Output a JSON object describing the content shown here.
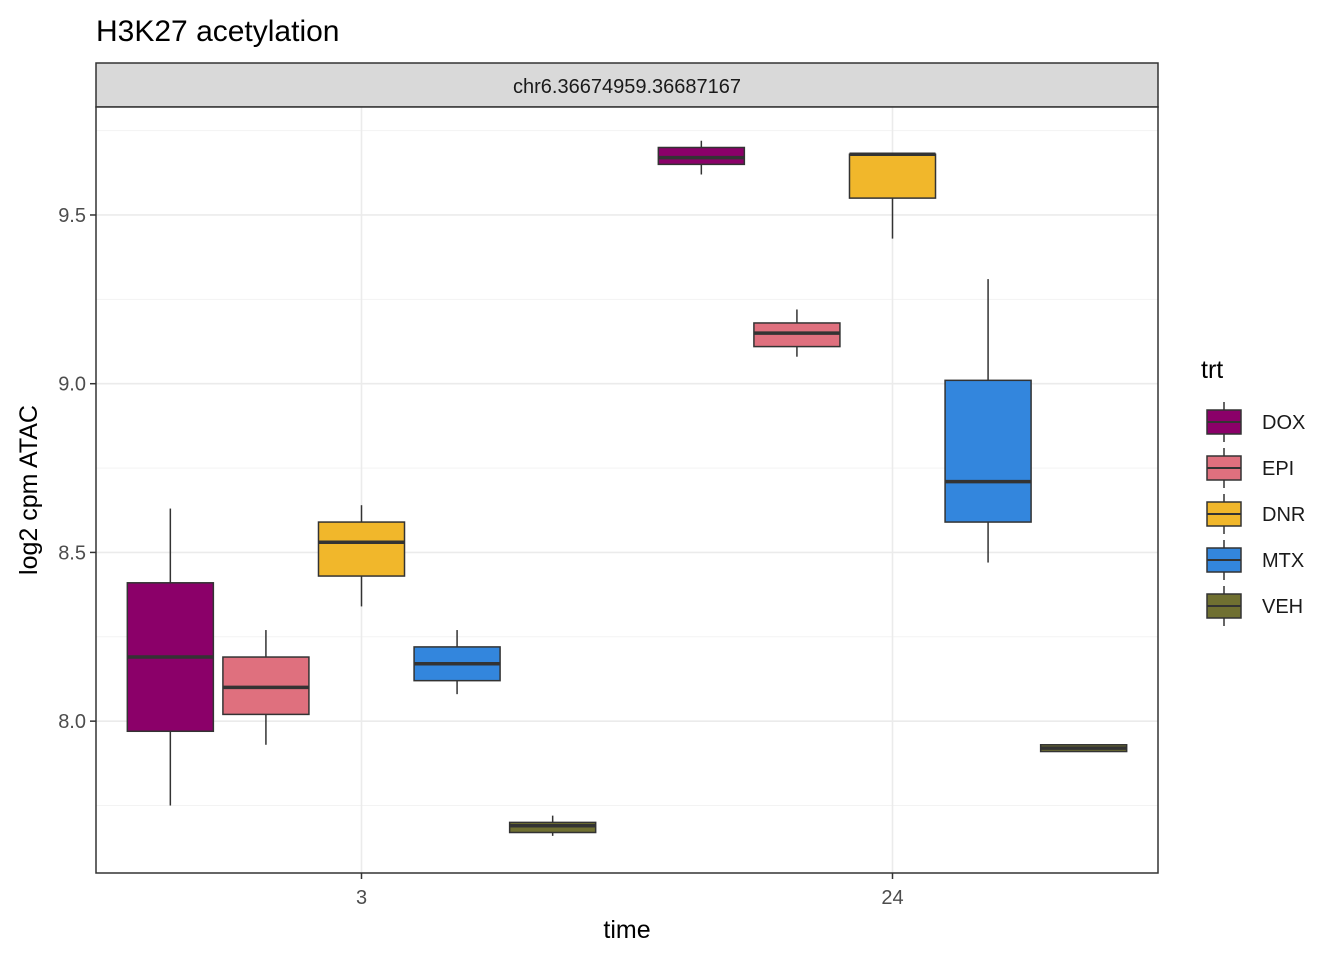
{
  "chart_data": {
    "type": "boxplot",
    "title": "H3K27 acetylation",
    "facet_label": "chr6.36674959.36687167",
    "xlabel": "time",
    "ylabel": "log2 cpm ATAC",
    "x_categories": [
      "3",
      "24"
    ],
    "y_ticks": [
      "8.0",
      "8.5",
      "9.0",
      "9.5"
    ],
    "y_tick_values": [
      8.0,
      8.5,
      9.0,
      9.5
    ],
    "ylim": [
      7.55,
      9.82
    ],
    "grid": true,
    "legend": {
      "title": "trt",
      "position": "right",
      "entries": [
        "DOX",
        "EPI",
        "DNR",
        "MTX",
        "VEH"
      ]
    },
    "colors": {
      "DOX": "#8B0069",
      "EPI": "#DF707E",
      "DNR": "#F1B72B",
      "MTX": "#3386DD",
      "VEH": "#707031"
    },
    "series": [
      {
        "name": "DOX",
        "boxes": [
          {
            "x": "3",
            "min": 7.75,
            "q1": 7.97,
            "median": 8.19,
            "q3": 8.41,
            "max": 8.63
          },
          {
            "x": "24",
            "min": 9.62,
            "q1": 9.65,
            "median": 9.67,
            "q3": 9.7,
            "max": 9.72
          }
        ]
      },
      {
        "name": "EPI",
        "boxes": [
          {
            "x": "3",
            "min": 7.93,
            "q1": 8.02,
            "median": 8.1,
            "q3": 8.19,
            "max": 8.27
          },
          {
            "x": "24",
            "min": 9.08,
            "q1": 9.11,
            "median": 9.15,
            "q3": 9.18,
            "max": 9.22
          }
        ]
      },
      {
        "name": "DNR",
        "boxes": [
          {
            "x": "3",
            "min": 8.34,
            "q1": 8.43,
            "median": 8.53,
            "q3": 8.59,
            "max": 8.64
          },
          {
            "x": "24",
            "min": 9.43,
            "q1": 9.55,
            "median": 9.68,
            "q3": 9.68,
            "max": 9.68
          }
        ]
      },
      {
        "name": "MTX",
        "boxes": [
          {
            "x": "3",
            "min": 8.08,
            "q1": 8.12,
            "median": 8.17,
            "q3": 8.22,
            "max": 8.27
          },
          {
            "x": "24",
            "min": 8.47,
            "q1": 8.59,
            "median": 8.71,
            "q3": 9.01,
            "max": 9.31
          }
        ]
      },
      {
        "name": "VEH",
        "boxes": [
          {
            "x": "3",
            "min": 7.66,
            "q1": 7.67,
            "median": 7.69,
            "q3": 7.7,
            "max": 7.72
          },
          {
            "x": "24",
            "min": 7.91,
            "q1": 7.91,
            "median": 7.92,
            "q3": 7.93,
            "max": 7.93
          }
        ]
      }
    ]
  }
}
